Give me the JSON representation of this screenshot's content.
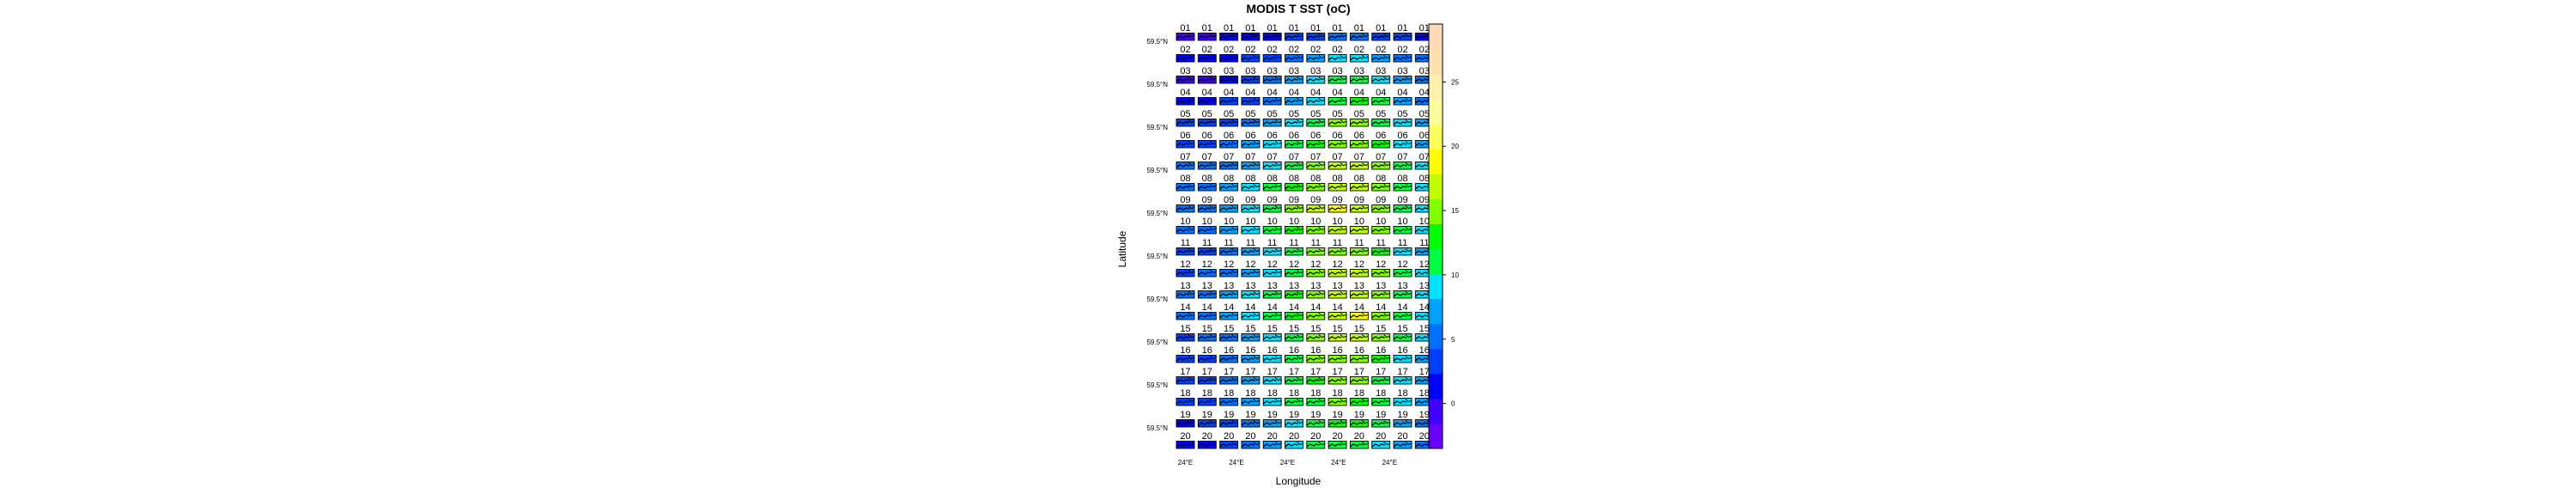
{
  "chart_data": {
    "type": "heatmap",
    "title": "MODIS T SST (oC)",
    "xlabel": "Longitude",
    "ylabel": "Latitude",
    "x_tick_labels": [
      "24°E",
      "24°E",
      "24°E",
      "24°E",
      "24°E"
    ],
    "y_tick_labels": [
      "59.5°N",
      "59.5°N",
      "59.5°N",
      "59.5°N",
      "59.5°N",
      "59.5°N",
      "59.5°N",
      "59.5°N",
      "59.5°N",
      "59.5°N"
    ],
    "panel_labels": [
      "01",
      "02",
      "03",
      "04",
      "05",
      "06",
      "07",
      "08",
      "09",
      "10",
      "11",
      "12",
      "13",
      "14",
      "15",
      "16",
      "17",
      "18",
      "19",
      "20"
    ],
    "colorbar": {
      "ticks": [
        0,
        5,
        10,
        15,
        20,
        25
      ],
      "range": [
        -3.5,
        29.5
      ],
      "colors": [
        "#6a00ff",
        "#4000ff",
        "#0000ff",
        "#0040ff",
        "#0070ff",
        "#00a0ff",
        "#00e0ff",
        "#00ff40",
        "#00ff00",
        "#80ff00",
        "#c0ff00",
        "#ffff00",
        "#ffff60",
        "#ffffa0",
        "#fff0b0",
        "#ffe0b0",
        "#ffd8b8"
      ]
    },
    "grid": {
      "rows": 20,
      "cols": 12,
      "panel_mean_sst": [
        [
          0,
          0,
          1,
          2,
          2,
          3,
          4,
          5,
          5,
          4,
          3,
          2
        ],
        [
          1,
          1,
          2,
          3,
          4,
          6,
          8,
          9,
          9,
          8,
          6,
          5
        ],
        [
          0,
          0,
          2,
          3,
          5,
          7,
          9,
          11,
          11,
          9,
          7,
          5
        ],
        [
          2,
          2,
          3,
          4,
          6,
          8,
          10,
          12,
          13,
          11,
          8,
          6
        ],
        [
          3,
          3,
          4,
          6,
          8,
          10,
          12,
          14,
          14,
          12,
          9,
          7
        ],
        [
          4,
          4,
          5,
          7,
          9,
          11,
          13,
          15,
          15,
          13,
          10,
          8
        ],
        [
          5,
          5,
          6,
          8,
          10,
          12,
          14,
          16,
          16,
          14,
          11,
          9
        ],
        [
          6,
          6,
          7,
          9,
          11,
          13,
          15,
          17,
          17,
          15,
          12,
          10
        ],
        [
          6,
          6,
          8,
          10,
          12,
          14,
          16,
          18,
          17,
          15,
          12,
          10
        ],
        [
          5,
          5,
          7,
          9,
          11,
          13,
          15,
          17,
          16,
          14,
          11,
          9
        ],
        [
          4,
          4,
          6,
          8,
          10,
          12,
          14,
          15,
          15,
          13,
          10,
          8
        ],
        [
          4,
          5,
          6,
          8,
          10,
          12,
          14,
          16,
          16,
          14,
          11,
          9
        ],
        [
          5,
          5,
          7,
          9,
          11,
          13,
          15,
          17,
          17,
          15,
          12,
          10
        ],
        [
          5,
          6,
          7,
          9,
          11,
          13,
          15,
          17,
          18,
          15,
          12,
          10
        ],
        [
          4,
          5,
          6,
          8,
          10,
          12,
          14,
          16,
          16,
          14,
          11,
          9
        ],
        [
          4,
          4,
          6,
          8,
          10,
          12,
          14,
          15,
          15,
          13,
          10,
          8
        ],
        [
          3,
          4,
          5,
          7,
          9,
          11,
          13,
          14,
          14,
          12,
          9,
          7
        ],
        [
          3,
          3,
          5,
          7,
          9,
          11,
          12,
          14,
          13,
          11,
          9,
          7
        ],
        [
          2,
          3,
          4,
          6,
          8,
          10,
          12,
          13,
          13,
          11,
          8,
          6
        ],
        [
          2,
          2,
          4,
          6,
          8,
          10,
          11,
          12,
          12,
          10,
          8,
          6
        ]
      ]
    }
  }
}
